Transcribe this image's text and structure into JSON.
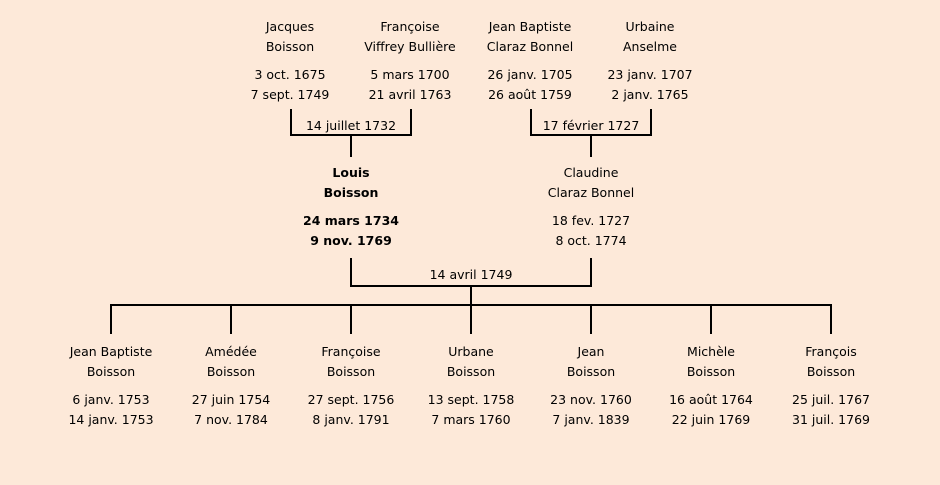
{
  "grandparents": [
    {
      "first": "Jacques",
      "last": "Boisson",
      "birth": "3 oct. 1675",
      "death": "7 sept. 1749"
    },
    {
      "first": "Françoise",
      "last": "Viffrey Bullière",
      "birth": "5 mars 1700",
      "death": "21 avril 1763"
    },
    {
      "first": "Jean Baptiste",
      "last": "Claraz Bonnel",
      "birth": "26 janv. 1705",
      "death": "26 août 1759"
    },
    {
      "first": "Urbaine",
      "last": "Anselme",
      "birth": "23 janv. 1707",
      "death": "2 janv. 1765"
    }
  ],
  "grandparent_marriages": [
    "14 juillet 1732",
    "17 février 1727"
  ],
  "parents": [
    {
      "first": "Louis",
      "last": "Boisson",
      "birth": "24 mars 1734",
      "death": "9 nov. 1769"
    },
    {
      "first": "Claudine",
      "last": "Claraz Bonnel",
      "birth": "18 fev. 1727",
      "death": "8 oct. 1774"
    }
  ],
  "parents_marriage": "14 avril 1749",
  "children": [
    {
      "first": "Jean Baptiste",
      "last": "Boisson",
      "birth": "6 janv. 1753",
      "death": "14 janv. 1753"
    },
    {
      "first": "Amédée",
      "last": "Boisson",
      "birth": "27 juin 1754",
      "death": "7 nov. 1784"
    },
    {
      "first": "Françoise",
      "last": "Boisson",
      "birth": "27 sept. 1756",
      "death": "8 janv. 1791"
    },
    {
      "first": "Urbane",
      "last": "Boisson",
      "birth": "13 sept. 1758",
      "death": "7 mars 1760"
    },
    {
      "first": "Jean",
      "last": "Boisson",
      "birth": "23 nov. 1760",
      "death": "7 janv. 1839"
    },
    {
      "first": "Michèle",
      "last": "Boisson",
      "birth": "16 août 1764",
      "death": "22 juin 1769"
    },
    {
      "first": "François",
      "last": "Boisson",
      "birth": "25 juil. 1767",
      "death": "31 juil. 1769"
    }
  ]
}
